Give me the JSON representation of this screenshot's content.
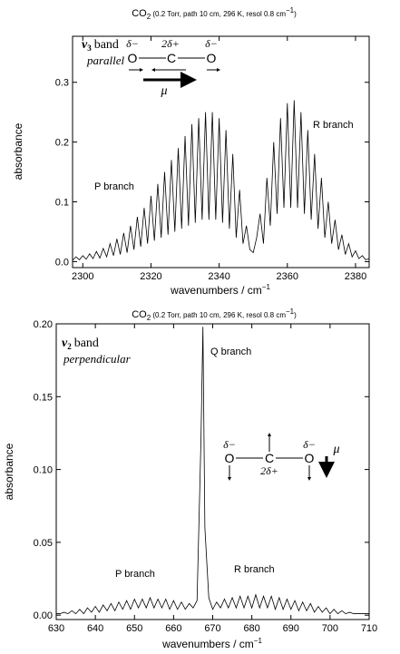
{
  "chart_data": [
    {
      "type": "line",
      "title": {
        "main": "CO",
        "sub": "2",
        "text": " (0.2 Torr, path 10 cm, 296 K, resol 0.8 cm",
        "sup": "−1",
        "end": ")"
      },
      "xlabel": {
        "text": "wavenumbers / cm",
        "sup": "−1"
      },
      "ylabel": "absorbance",
      "band": {
        "symbol": "ν",
        "sub": "3",
        "word": "band"
      },
      "mode": "parallel",
      "labels": [
        "P branch",
        "R branch"
      ],
      "molecule": {
        "atoms": [
          "O",
          "C",
          "O"
        ],
        "charges": [
          "δ−",
          "2δ+",
          "δ−"
        ],
        "dipole": "μ"
      },
      "color": "#000000",
      "xlim": [
        2297,
        2384
      ],
      "xticks": [
        2300,
        2320,
        2340,
        2360,
        2380
      ],
      "ylim": [
        -0.01,
        0.377
      ],
      "yticks": [
        {
          "value": 0,
          "label": "0.0"
        },
        0.1,
        0.2,
        0.3
      ],
      "x": [
        2297,
        2298,
        2299,
        2300,
        2301,
        2302,
        2303,
        2304,
        2305,
        2306,
        2307,
        2308,
        2309,
        2310,
        2311,
        2312,
        2313,
        2314,
        2315,
        2316,
        2317,
        2318,
        2319,
        2320,
        2321,
        2322,
        2323,
        2324,
        2325,
        2326,
        2327,
        2328,
        2329,
        2330,
        2331,
        2332,
        2333,
        2334,
        2335,
        2336,
        2337,
        2338,
        2339,
        2340,
        2341,
        2342,
        2343,
        2344,
        2345,
        2346,
        2347,
        2348,
        2349,
        2350,
        2351,
        2352,
        2353,
        2354,
        2355,
        2356,
        2357,
        2358,
        2359,
        2360,
        2361,
        2362,
        2363,
        2364,
        2365,
        2366,
        2367,
        2368,
        2369,
        2370,
        2371,
        2372,
        2373,
        2374,
        2375,
        2376,
        2377,
        2378,
        2379,
        2380,
        2381,
        2382,
        2383,
        2384
      ],
      "values": [
        0.002,
        0.008,
        0.003,
        0.01,
        0.004,
        0.013,
        0.005,
        0.017,
        0.006,
        0.022,
        0.008,
        0.03,
        0.01,
        0.038,
        0.012,
        0.048,
        0.015,
        0.06,
        0.02,
        0.075,
        0.025,
        0.09,
        0.03,
        0.11,
        0.035,
        0.13,
        0.04,
        0.15,
        0.045,
        0.17,
        0.05,
        0.19,
        0.055,
        0.21,
        0.06,
        0.23,
        0.065,
        0.24,
        0.07,
        0.25,
        0.07,
        0.25,
        0.07,
        0.24,
        0.065,
        0.22,
        0.055,
        0.18,
        0.04,
        0.12,
        0.03,
        0.06,
        0.02,
        0.015,
        0.04,
        0.08,
        0.03,
        0.14,
        0.06,
        0.2,
        0.08,
        0.24,
        0.09,
        0.265,
        0.09,
        0.27,
        0.09,
        0.25,
        0.08,
        0.22,
        0.07,
        0.18,
        0.055,
        0.14,
        0.04,
        0.1,
        0.03,
        0.07,
        0.02,
        0.045,
        0.012,
        0.03,
        0.008,
        0.018,
        0.005,
        0.01,
        0.003,
        0.005
      ]
    },
    {
      "type": "line",
      "title": {
        "main": "CO",
        "sub": "2",
        "text": " (0.2 Torr, path 10 cm, 296 K, resol 0.8 cm",
        "sup": "−1",
        "end": ")"
      },
      "xlabel": {
        "text": "wavenumbers / cm",
        "sup": "−1"
      },
      "ylabel": "absorbance",
      "band": {
        "symbol": "ν",
        "sub": "2",
        "word": "band"
      },
      "mode": "perpendicular",
      "labels": [
        "Q branch",
        "P branch",
        "R branch"
      ],
      "molecule": {
        "atoms": [
          "O",
          "C",
          "O"
        ],
        "charges": [
          "δ−",
          "2δ+",
          "δ−"
        ],
        "dipole": "μ"
      },
      "color": "#000000",
      "xlim": [
        630,
        710
      ],
      "xticks": [
        630,
        640,
        650,
        660,
        670,
        680,
        690,
        700,
        710
      ],
      "ylim": [
        -0.003,
        0.2
      ],
      "yticks": [
        {
          "value": 0,
          "label": "0.00"
        },
        {
          "value": 0.05,
          "label": "0.05"
        },
        {
          "value": 0.1,
          "label": "0.10"
        },
        {
          "value": 0.15,
          "label": "0.15"
        },
        {
          "value": 0.2,
          "label": "0.20"
        }
      ],
      "x": [
        630,
        631,
        632,
        633,
        634,
        635,
        636,
        637,
        638,
        639,
        640,
        641,
        642,
        643,
        644,
        645,
        646,
        647,
        648,
        649,
        650,
        651,
        652,
        653,
        654,
        655,
        656,
        657,
        658,
        659,
        660,
        661,
        662,
        663,
        664,
        665,
        666,
        667,
        667.5,
        668,
        669,
        670,
        671,
        672,
        673,
        674,
        675,
        676,
        677,
        678,
        679,
        680,
        681,
        682,
        683,
        684,
        685,
        686,
        687,
        688,
        689,
        690,
        691,
        692,
        693,
        694,
        695,
        696,
        697,
        698,
        699,
        700,
        701,
        702,
        703,
        704,
        705,
        706,
        707,
        708,
        709,
        710
      ],
      "values": [
        0.001,
        0.001,
        0.002,
        0.001,
        0.003,
        0.001,
        0.004,
        0.001,
        0.005,
        0.002,
        0.006,
        0.002,
        0.007,
        0.003,
        0.008,
        0.003,
        0.009,
        0.004,
        0.01,
        0.004,
        0.011,
        0.005,
        0.011,
        0.005,
        0.012,
        0.005,
        0.011,
        0.005,
        0.011,
        0.004,
        0.01,
        0.004,
        0.009,
        0.004,
        0.008,
        0.005,
        0.01,
        0.12,
        0.198,
        0.06,
        0.012,
        0.004,
        0.009,
        0.005,
        0.011,
        0.005,
        0.012,
        0.005,
        0.013,
        0.005,
        0.013,
        0.005,
        0.014,
        0.005,
        0.013,
        0.005,
        0.013,
        0.004,
        0.012,
        0.004,
        0.011,
        0.004,
        0.01,
        0.003,
        0.009,
        0.003,
        0.008,
        0.002,
        0.006,
        0.002,
        0.005,
        0.001,
        0.004,
        0.001,
        0.003,
        0.001,
        0.002,
        0.001,
        0.001,
        0.001,
        0.001,
        0.001
      ]
    }
  ]
}
